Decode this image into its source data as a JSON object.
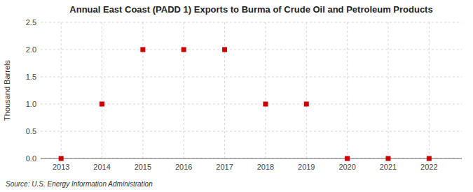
{
  "chart_data": {
    "type": "scatter",
    "title": "Annual East Coast (PADD 1) Exports to Burma of Crude Oil and Petroleum Products",
    "ylabel": "Thousand Barrels",
    "source": "Source: U.S. Energy Information Administration",
    "x": [
      2013,
      2014,
      2015,
      2016,
      2017,
      2018,
      2019,
      2020,
      2021,
      2022
    ],
    "values": [
      0,
      1,
      2,
      2,
      2,
      1,
      1,
      0,
      0,
      0
    ],
    "color": "#cc0000",
    "marker": "square",
    "xlim": [
      2012.5,
      2022.8
    ],
    "ylim": [
      0,
      2.5
    ],
    "xticks": [
      2013,
      2014,
      2015,
      2016,
      2017,
      2018,
      2019,
      2020,
      2021,
      2022
    ],
    "yticks": [
      {
        "value": 0.0,
        "label": "0.0"
      },
      0.5,
      {
        "value": 1.0,
        "label": "1.0"
      },
      1.5,
      {
        "value": 2.0,
        "label": "2.0"
      },
      2.5
    ],
    "grid": true
  }
}
